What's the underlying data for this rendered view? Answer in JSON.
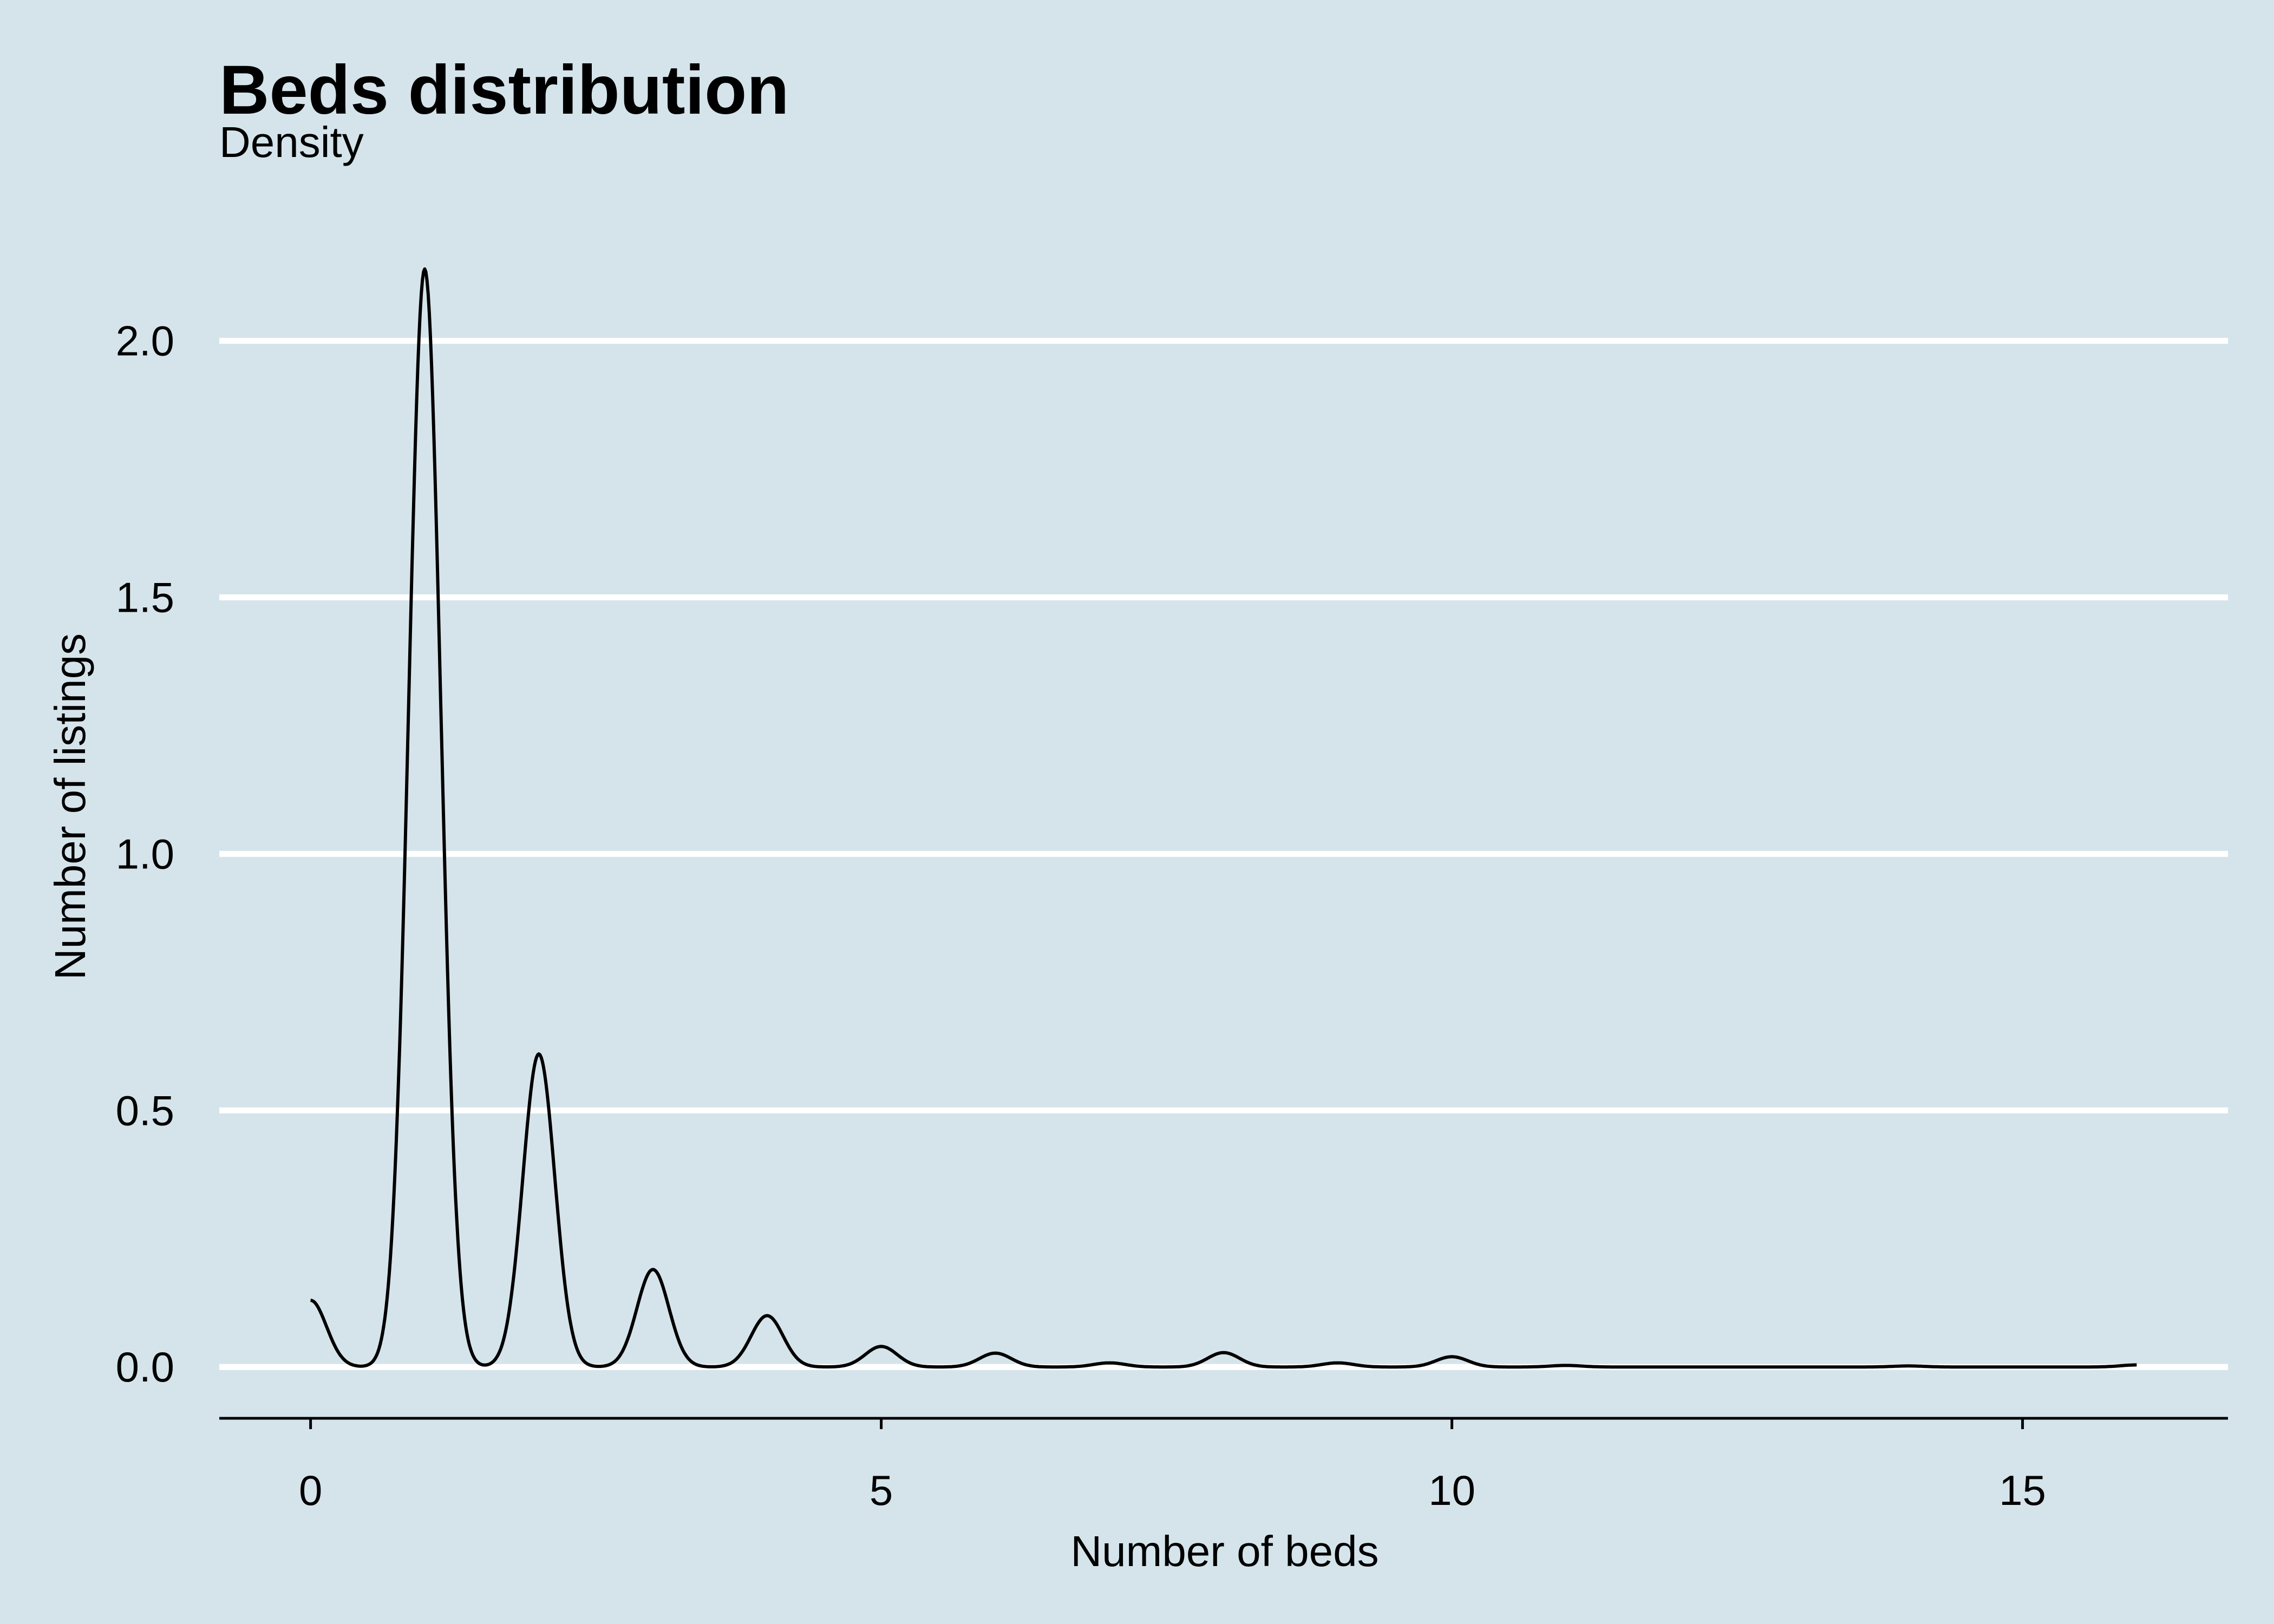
{
  "chart_data": {
    "type": "line",
    "title": "Beds distribution",
    "subtitle": "Density",
    "xlabel": "Number of beds",
    "ylabel": "Number of listings",
    "xlim": [
      -0.8,
      16.8
    ],
    "ylim": [
      -0.1,
      2.2
    ],
    "xticks": [
      0,
      5,
      10,
      15
    ],
    "yticks": [
      0.0,
      0.5,
      1.0,
      1.5,
      2.0
    ],
    "xtick_labels": [
      "0",
      "5",
      "10",
      "15"
    ],
    "ytick_labels": [
      "0.0",
      "0.5",
      "1.0",
      "1.5",
      "2.0"
    ],
    "grid": "horizontal",
    "x_range": [
      0,
      16
    ],
    "series": [
      {
        "peaks": [
          {
            "x": 0,
            "y": 0.13
          },
          {
            "x": 1,
            "y": 2.14
          },
          {
            "x": 2,
            "y": 0.61
          },
          {
            "x": 3,
            "y": 0.19
          },
          {
            "x": 4,
            "y": 0.1
          },
          {
            "x": 5,
            "y": 0.04
          },
          {
            "x": 6,
            "y": 0.027
          },
          {
            "x": 7,
            "y": 0.008
          },
          {
            "x": 8,
            "y": 0.028
          },
          {
            "x": 9,
            "y": 0.008
          },
          {
            "x": 10,
            "y": 0.02
          },
          {
            "x": 11,
            "y": 0.003
          },
          {
            "x": 14,
            "y": 0.002
          },
          {
            "x": 16,
            "y": 0.004
          }
        ]
      }
    ]
  },
  "colors": {
    "background": "#d5e4eb",
    "grid": "#ffffff",
    "line": "#000000"
  }
}
